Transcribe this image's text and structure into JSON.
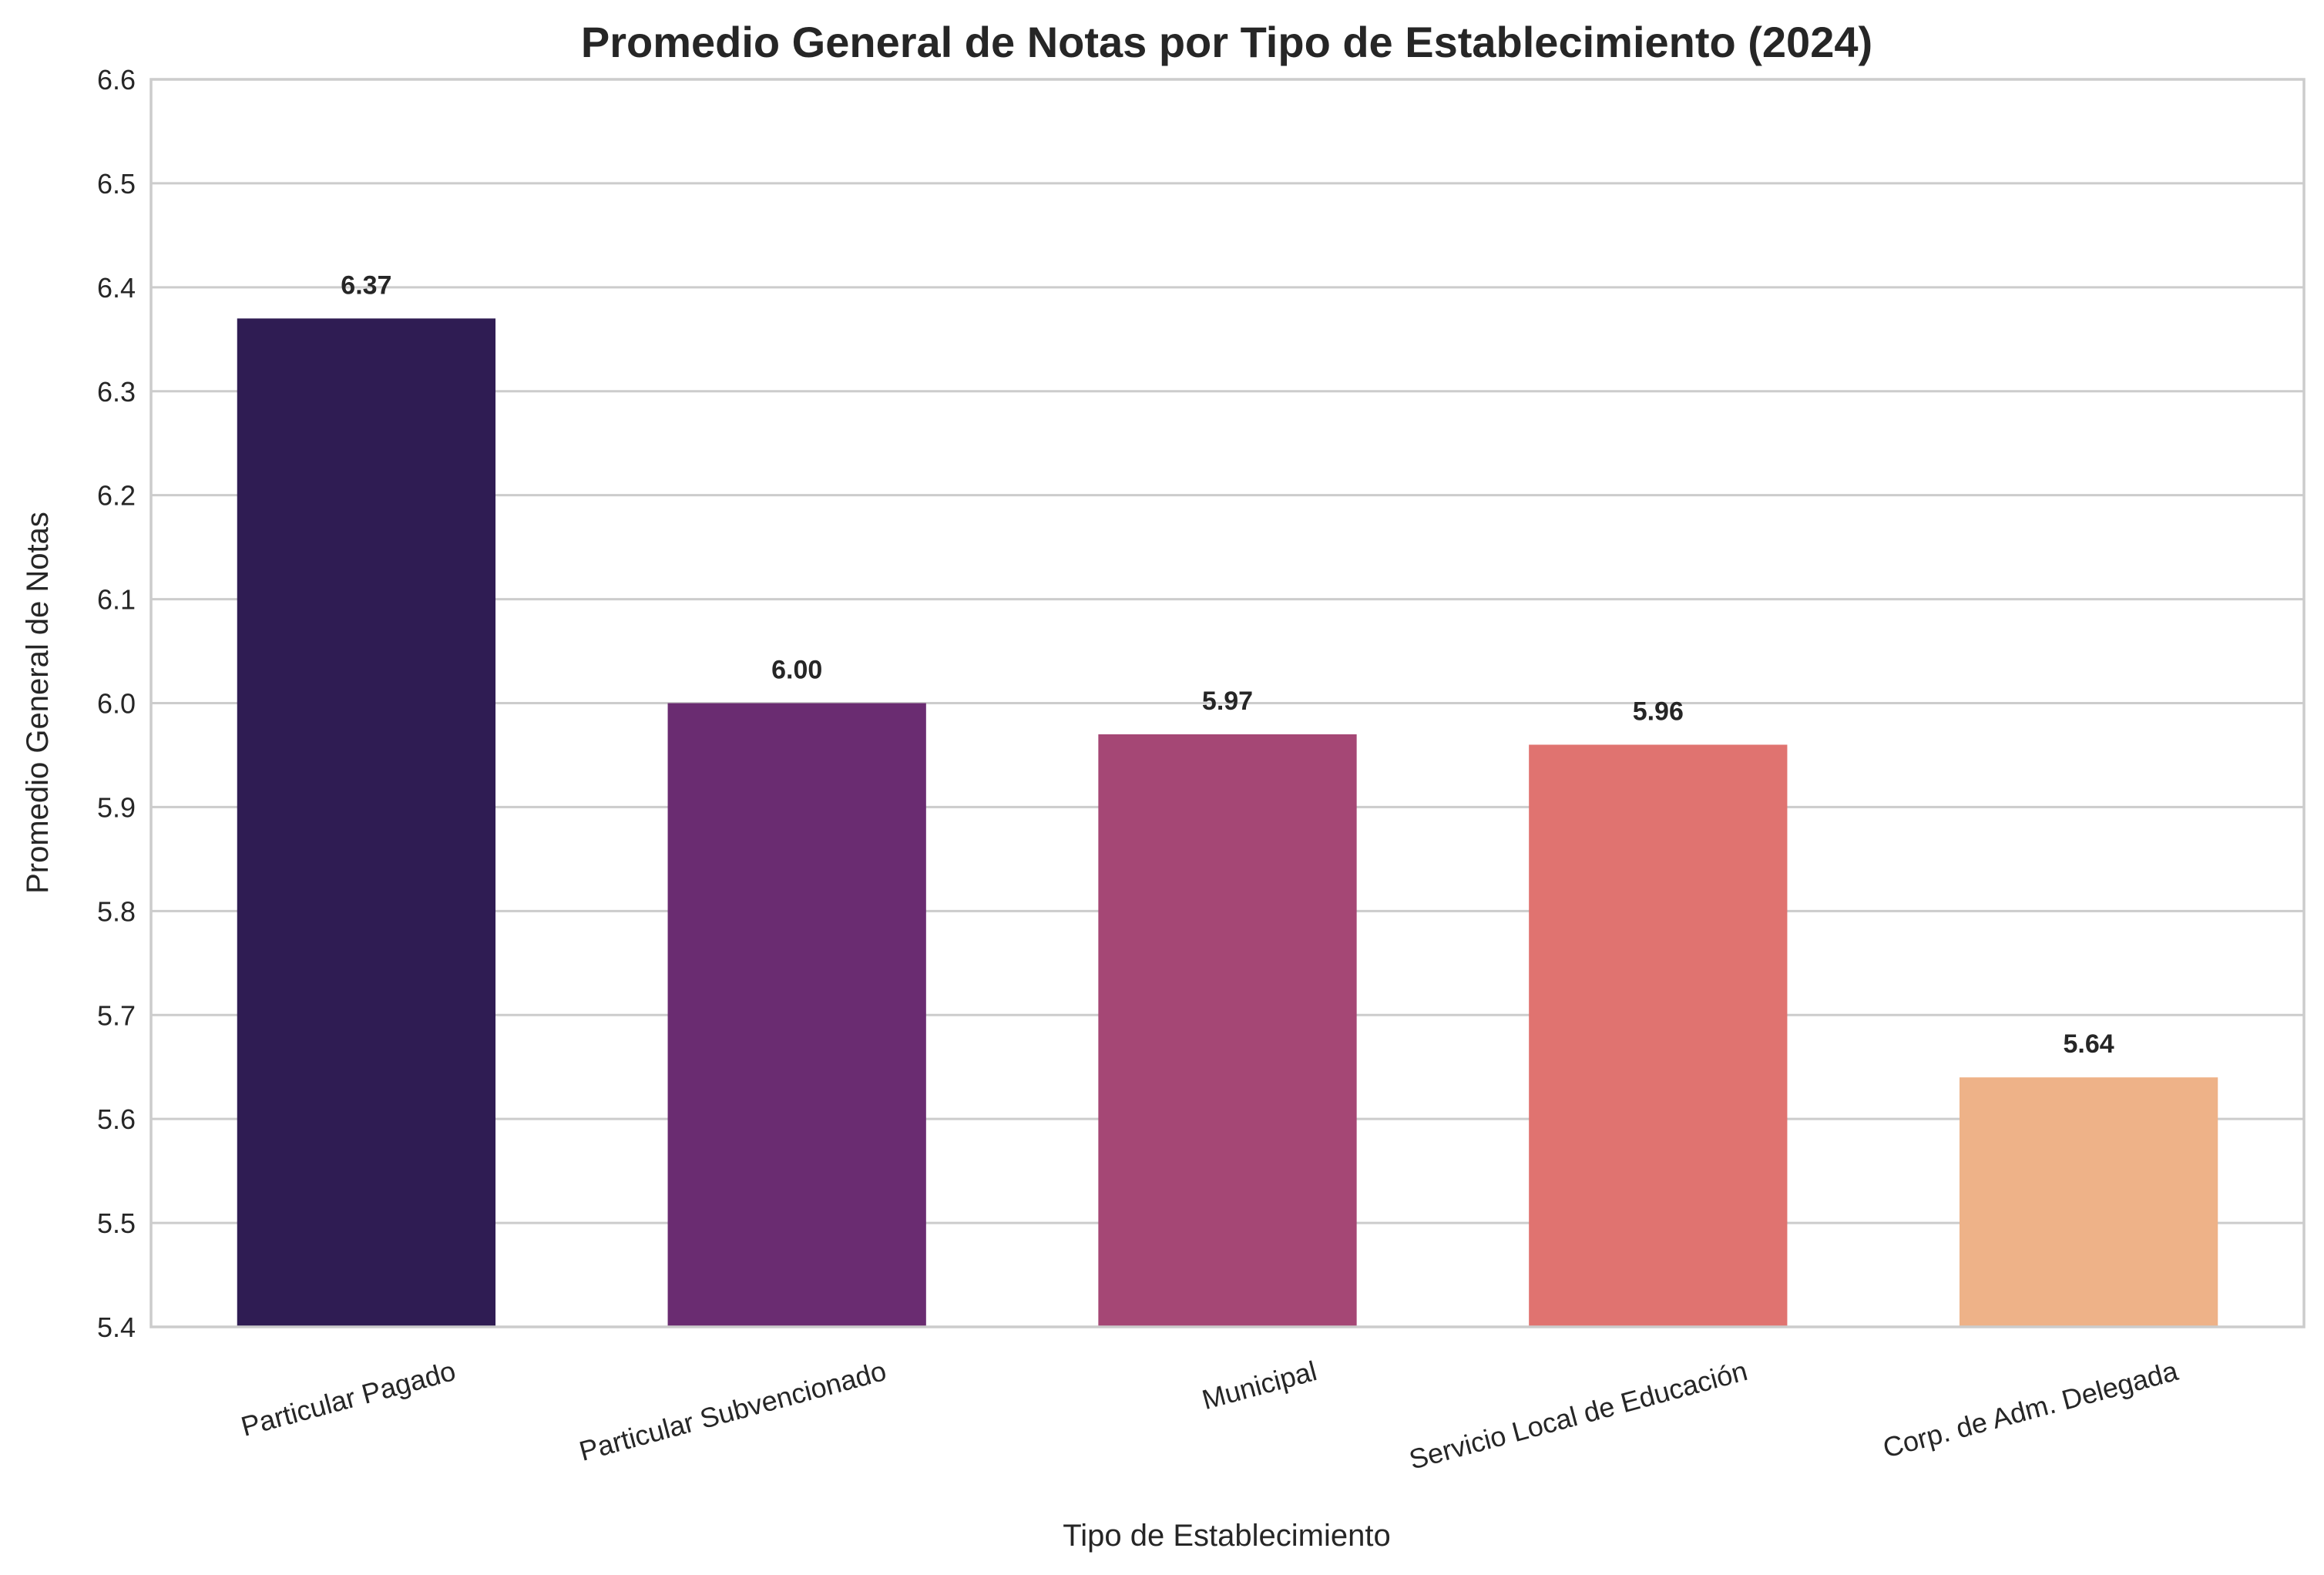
{
  "chart_data": {
    "type": "bar",
    "title": "Promedio General de Notas por Tipo de Establecimiento (2024)",
    "xlabel": "Tipo de Establecimiento",
    "ylabel": "Promedio General de Notas",
    "categories": [
      "Particular Pagado",
      "Particular Subvencionado",
      "Municipal",
      "Servicio Local de Educación",
      "Corp. de Adm. Delegada"
    ],
    "values": [
      6.37,
      6.0,
      5.97,
      5.96,
      5.64
    ],
    "data_labels": [
      "6.37",
      "6.00",
      "5.97",
      "5.96",
      "5.64"
    ],
    "colors": [
      "#2f1c53",
      "#6a2c71",
      "#a54775",
      "#e07370",
      "#eeb288"
    ],
    "ylim": [
      5.4,
      6.6
    ],
    "yticks": [
      5.4,
      5.5,
      5.6,
      5.7,
      5.8,
      5.9,
      6.0,
      6.1,
      6.2,
      6.3,
      6.4,
      6.5,
      6.6
    ],
    "ytick_labels": [
      "5.4",
      "5.5",
      "5.6",
      "5.7",
      "5.8",
      "5.9",
      "6.0",
      "6.1",
      "6.2",
      "6.3",
      "6.4",
      "6.5",
      "6.6"
    ],
    "grid": "y",
    "xtick_rotation": 15
  }
}
